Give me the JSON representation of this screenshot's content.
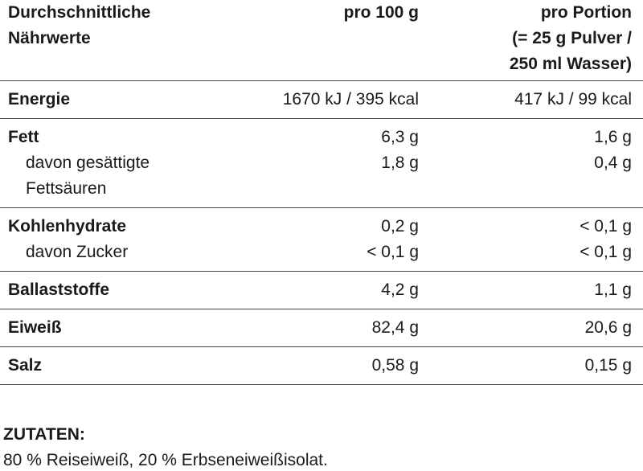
{
  "table": {
    "header": [
      [
        "Durchschnittliche",
        "Nährwerte"
      ],
      [
        "pro 100 g"
      ],
      [
        "pro Portion",
        "(= 25 g Pulver /",
        "250 ml Wasser)"
      ]
    ],
    "groups": [
      {
        "rows": [
          {
            "label": [
              "Energie"
            ],
            "per_100g": "1670 kJ / 395 kcal",
            "per_portion": "417 kJ / 99 kcal"
          }
        ]
      },
      {
        "rows": [
          {
            "label": [
              "Fett"
            ],
            "per_100g": "6,3 g",
            "per_portion": "1,6 g"
          },
          {
            "label": [
              "davon gesättigte",
              "Fettsäuren"
            ],
            "per_100g": "1,8 g",
            "per_portion": "0,4 g"
          }
        ]
      },
      {
        "rows": [
          {
            "label": [
              "Kohlenhydrate"
            ],
            "per_100g": "0,2 g",
            "per_portion": "< 0,1 g"
          },
          {
            "label": [
              "davon Zucker"
            ],
            "per_100g": "< 0,1 g",
            "per_portion": "< 0,1 g"
          }
        ]
      },
      {
        "rows": [
          {
            "label": [
              "Ballaststoffe"
            ],
            "per_100g": "4,2 g",
            "per_portion": "1,1 g"
          }
        ]
      },
      {
        "rows": [
          {
            "label": [
              "Eiweiß"
            ],
            "per_100g": "82,4 g",
            "per_portion": "20,6 g"
          }
        ]
      },
      {
        "rows": [
          {
            "label": [
              "Salz"
            ],
            "per_100g": "0,58 g",
            "per_portion": "0,15 g"
          }
        ]
      }
    ]
  },
  "ingredients": {
    "title": "ZUTATEN:",
    "text": "80 % Reiseiweiß, 20 % Erbseneiweißisolat."
  }
}
